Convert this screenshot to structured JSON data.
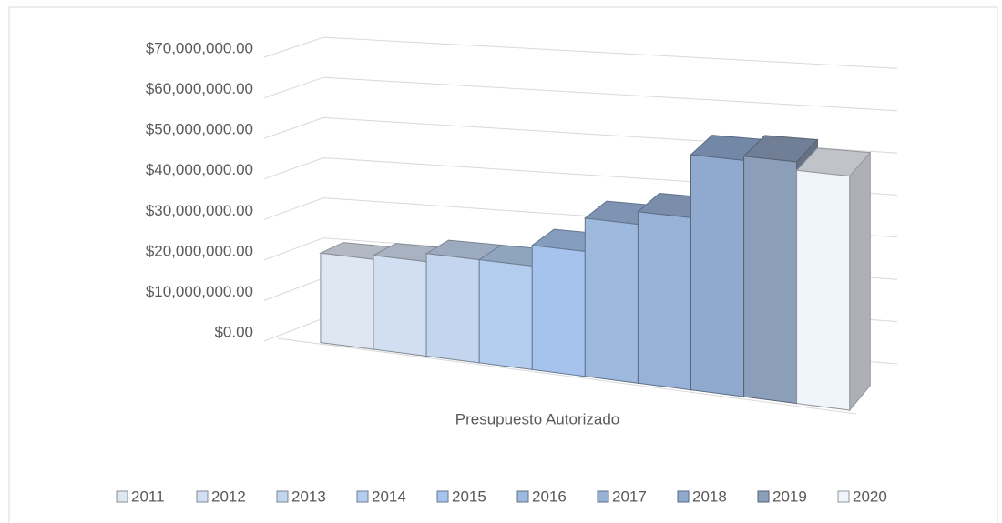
{
  "chart_data": {
    "type": "bar",
    "categories": [
      "Presupuesto Autorizado"
    ],
    "series": [
      {
        "name": "2011",
        "color": "#dfe7f3",
        "values": [
          22000000
        ]
      },
      {
        "name": "2012",
        "color": "#d2def1",
        "values": [
          23000000
        ]
      },
      {
        "name": "2013",
        "color": "#c3d5ef",
        "values": [
          25000000
        ]
      },
      {
        "name": "2014",
        "color": "#b3cdef",
        "values": [
          25000000
        ]
      },
      {
        "name": "2015",
        "color": "#a5c3ec",
        "values": [
          30000000
        ]
      },
      {
        "name": "2016",
        "color": "#9eb9de",
        "values": [
          38000000
        ]
      },
      {
        "name": "2017",
        "color": "#98b1d6",
        "values": [
          41000000
        ]
      },
      {
        "name": "2018",
        "color": "#90aacf",
        "values": [
          56000000
        ]
      },
      {
        "name": "2019",
        "color": "#8c9fba",
        "values": [
          57000000
        ]
      },
      {
        "name": "2020",
        "color": "#f0f4fb",
        "values": [
          55000000
        ]
      }
    ],
    "ylim": [
      0,
      70000000
    ],
    "yticks": [
      {
        "value": 0,
        "label": "$0.00"
      },
      {
        "value": 10000000,
        "label": "$10,000,000.00"
      },
      {
        "value": 20000000,
        "label": "$20,000,000.00"
      },
      {
        "value": 30000000,
        "label": "$30,000,000.00"
      },
      {
        "value": 40000000,
        "label": "$40,000,000.00"
      },
      {
        "value": 50000000,
        "label": "$50,000,000.00"
      },
      {
        "value": 60000000,
        "label": "$60,000,000.00"
      },
      {
        "value": 70000000,
        "label": "$70,000,000.00"
      }
    ],
    "grid": true,
    "legend": "bottom"
  }
}
